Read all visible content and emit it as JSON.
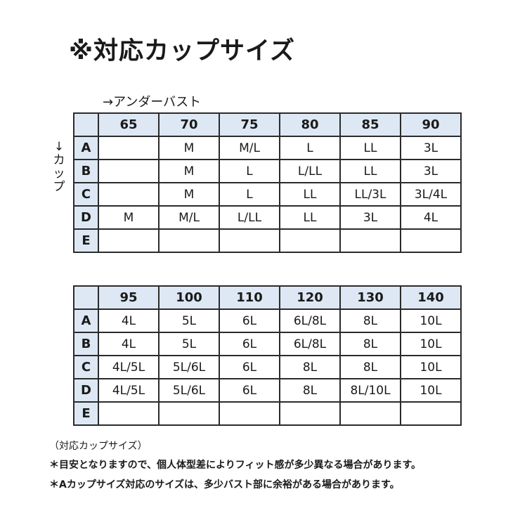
{
  "title": "※対応カップサイズ",
  "under_bust_label": "→アンダーバスト",
  "cup_label": [
    "↓",
    "カ",
    "ッ",
    "プ"
  ],
  "cups": [
    "A",
    "B",
    "C",
    "D",
    "E"
  ],
  "table1": {
    "headers": [
      "65",
      "70",
      "75",
      "80",
      "85",
      "90"
    ],
    "rows": [
      [
        "",
        "M",
        "M/L",
        "L",
        "LL",
        "3L"
      ],
      [
        "",
        "M",
        "L",
        "L/LL",
        "LL",
        "3L"
      ],
      [
        "",
        "M",
        "L",
        "LL",
        "LL/3L",
        "3L/4L"
      ],
      [
        "M",
        "M/L",
        "L/LL",
        "LL",
        "3L",
        "4L"
      ],
      [
        "",
        "",
        "",
        "",
        "",
        ""
      ]
    ]
  },
  "table2": {
    "headers": [
      "95",
      "100",
      "110",
      "120",
      "130",
      "140"
    ],
    "rows": [
      [
        "4L",
        "5L",
        "6L",
        "6L/8L",
        "8L",
        "10L"
      ],
      [
        "4L",
        "5L",
        "6L",
        "6L/8L",
        "8L",
        "10L"
      ],
      [
        "4L/5L",
        "5L/6L",
        "6L",
        "8L",
        "8L",
        "10L"
      ],
      [
        "4L/5L",
        "5L/6L",
        "6L",
        "8L",
        "8L/10L",
        "10L"
      ],
      [
        "",
        "",
        "",
        "",
        "",
        ""
      ]
    ]
  },
  "caption": "（対応カップサイズ）",
  "notes": [
    "＊目安となりますので、個人体型差によりフィット感が多少異なる場合があります。",
    "＊Aカップサイズ対応のサイズは、多少バスト部に余裕がある場合があります。"
  ],
  "colors": {
    "header_bg": "#dde8f4",
    "border": "#2b2b2b"
  }
}
